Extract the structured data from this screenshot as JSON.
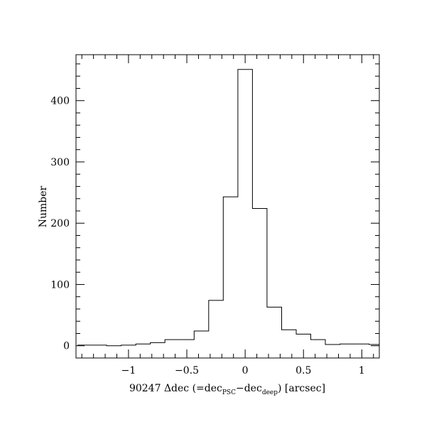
{
  "chart_data": {
    "type": "histogram",
    "xlabel": {
      "prefix": "90247 Δdec (=dec",
      "sub1": "PSC",
      "mid": "−dec",
      "sub2": "deep",
      "suffix": ") [arcsec]"
    },
    "ylabel": "Number",
    "xlim": [
      -1.45,
      1.15
    ],
    "ylim": [
      -20,
      475
    ],
    "x_ticks": [
      {
        "value": -1,
        "label": "−1"
      },
      {
        "value": -0.5,
        "label": "−0.5"
      },
      {
        "value": 0,
        "label": "0"
      },
      {
        "value": 0.5,
        "label": "0.5"
      },
      {
        "value": 1,
        "label": "1"
      }
    ],
    "x_minor_step": 0.1,
    "y_ticks": [
      {
        "value": 0,
        "label": "0"
      },
      {
        "value": 100,
        "label": "100"
      },
      {
        "value": 200,
        "label": "200"
      },
      {
        "value": 300,
        "label": "300"
      },
      {
        "value": 400,
        "label": "400"
      }
    ],
    "y_minor_step": 20,
    "bin_width": 0.125,
    "bins": [
      {
        "x0": -1.4375,
        "count": 1
      },
      {
        "x0": -1.3125,
        "count": 1
      },
      {
        "x0": -1.1875,
        "count": 0
      },
      {
        "x0": -1.0625,
        "count": 1
      },
      {
        "x0": -0.9375,
        "count": 3
      },
      {
        "x0": -0.8125,
        "count": 5
      },
      {
        "x0": -0.6875,
        "count": 10
      },
      {
        "x0": -0.5625,
        "count": 10
      },
      {
        "x0": -0.4375,
        "count": 24
      },
      {
        "x0": -0.3125,
        "count": 74
      },
      {
        "x0": -0.1875,
        "count": 243
      },
      {
        "x0": -0.0625,
        "count": 451
      },
      {
        "x0": 0.0625,
        "count": 224
      },
      {
        "x0": 0.1875,
        "count": 63
      },
      {
        "x0": 0.3125,
        "count": 26
      },
      {
        "x0": 0.4375,
        "count": 19
      },
      {
        "x0": 0.5625,
        "count": 10
      },
      {
        "x0": 0.6875,
        "count": 2
      },
      {
        "x0": 0.8125,
        "count": 3
      },
      {
        "x0": 0.9375,
        "count": 3
      },
      {
        "x0": 1.0625,
        "count": 2
      }
    ],
    "colors": {
      "line": "#000000",
      "background": "#ffffff"
    }
  }
}
